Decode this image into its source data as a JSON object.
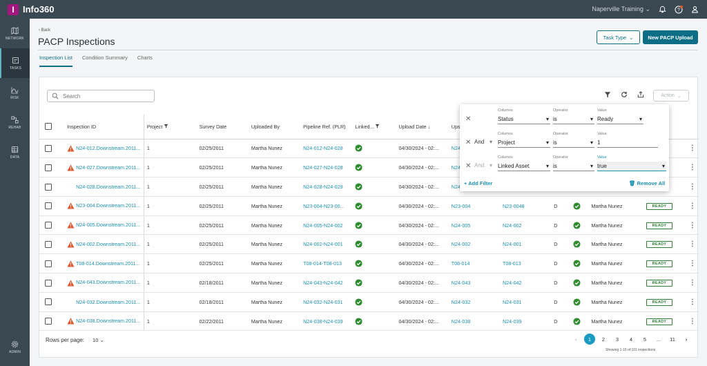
{
  "app": {
    "logo_letter": "I",
    "name": "Info360",
    "workspace": "Naperville Training",
    "accent": "#a3177f",
    "teal": "#0b6e86",
    "link": "#1b8fb0"
  },
  "sidebar": {
    "items": [
      {
        "label": "NETWORK",
        "icon": "map-icon"
      },
      {
        "label": "TASKS",
        "icon": "clipboard-icon"
      },
      {
        "label": "RISK",
        "icon": "risk-chart-icon"
      },
      {
        "label": "REHAB",
        "icon": "rehab-icon"
      },
      {
        "label": "DATA",
        "icon": "database-icon"
      }
    ],
    "admin_label": "ADMIN"
  },
  "header": {
    "back": "Back",
    "title": "PACP Inspections",
    "task_type": "Task Type",
    "new_upload": "New PACP Upload"
  },
  "tabs": [
    {
      "label": "Inspection List"
    },
    {
      "label": "Condition Summary"
    },
    {
      "label": "Charts"
    }
  ],
  "search": {
    "placeholder": "Search"
  },
  "action": {
    "label": "Action"
  },
  "table": {
    "columns": [
      "Inspection ID",
      "Project",
      "Survey Date",
      "Uploaded By",
      "Pipeline Ref. (PLR)",
      "Linked...",
      "Upload Date",
      "Upstr"
    ],
    "rows": [
      {
        "warn": true,
        "id": "N24-012.Downstream.2011...",
        "project": "1",
        "survey": "02/25/2011",
        "by": "Martha Nunez",
        "plr": "N24-012-N24-028",
        "upload": "04/30/2024 - 02:...",
        "up": "N24-0",
        "asset": "",
        "d": "",
        "reviewer": "",
        "status": ""
      },
      {
        "warn": true,
        "id": "N24-027.Downstream.2011...",
        "project": "1",
        "survey": "02/25/2011",
        "by": "Martha Nunez",
        "plr": "N24-027-N24-028",
        "upload": "04/30/2024 - 02:...",
        "up": "N24-0",
        "asset": "",
        "d": "",
        "reviewer": "",
        "status": ""
      },
      {
        "warn": false,
        "id": "N24-028.Downstream.2011...",
        "project": "1",
        "survey": "02/25/2011",
        "by": "Martha Nunez",
        "plr": "N24-028-N24-029",
        "upload": "04/30/2024 - 02:...",
        "up": "N24-0",
        "asset": "",
        "d": "",
        "reviewer": "",
        "status": ""
      },
      {
        "warn": true,
        "id": "N23-004.Downstream.2011...",
        "project": "1",
        "survey": "02/25/2011",
        "by": "Martha Nunez",
        "plr": "N23-004-N23-00...",
        "upload": "04/30/2024 - 02:...",
        "up": "N23-004",
        "asset": "N23-0048",
        "d": "D",
        "reviewer": "Martha Nunez",
        "status": "READY"
      },
      {
        "warn": true,
        "id": "N24-005.Downstream.2011...",
        "project": "1",
        "survey": "02/25/2011",
        "by": "Martha Nunez",
        "plr": "N24-005-N24-002",
        "upload": "04/30/2024 - 02:...",
        "up": "N24-005",
        "asset": "N24-002",
        "d": "D",
        "reviewer": "Martha Nunez",
        "status": "READY"
      },
      {
        "warn": true,
        "id": "N24-002.Downstream.2011...",
        "project": "1",
        "survey": "02/25/2011",
        "by": "Martha Nunez",
        "plr": "N24-002-N24-001",
        "upload": "04/30/2024 - 02:...",
        "up": "N24-002",
        "asset": "N24-001",
        "d": "D",
        "reviewer": "Martha Nunez",
        "status": "READY"
      },
      {
        "warn": true,
        "id": "T08-014.Downstream.2011...",
        "project": "1",
        "survey": "02/25/2011",
        "by": "Martha Nunez",
        "plr": "T08-014-T08-013",
        "upload": "04/30/2024 - 02:...",
        "up": "T08-014",
        "asset": "T08-013",
        "d": "D",
        "reviewer": "Martha Nunez",
        "status": "READY"
      },
      {
        "warn": true,
        "id": "N24-043.Downstream.2011...",
        "project": "1",
        "survey": "02/18/2011",
        "by": "Martha Nunez",
        "plr": "N24-043-N24-042",
        "upload": "04/30/2024 - 02:...",
        "up": "N24-043",
        "asset": "N24-042",
        "d": "D",
        "reviewer": "Martha Nunez",
        "status": "READY"
      },
      {
        "warn": false,
        "id": "N24-032.Downstream.2011...",
        "project": "1",
        "survey": "02/18/2011",
        "by": "Martha Nunez",
        "plr": "N24-032-N24-031",
        "upload": "04/30/2024 - 02:...",
        "up": "N24-032",
        "asset": "N24-031",
        "d": "D",
        "reviewer": "Martha Nunez",
        "status": "READY"
      },
      {
        "warn": true,
        "id": "N24-038.Downstream.2011...",
        "project": "1",
        "survey": "02/22/2011",
        "by": "Martha Nunez",
        "plr": "N24-038-N24-039",
        "upload": "04/30/2024 - 02:...",
        "up": "N24-038",
        "asset": "N24-039",
        "d": "D",
        "reviewer": "Martha Nunez",
        "status": "READY"
      }
    ]
  },
  "footer": {
    "rows_label": "Rows per page:",
    "rows_value": "10",
    "pages": [
      "1",
      "2",
      "3",
      "4",
      "5",
      "...",
      "11"
    ],
    "info": "Showing 1-10 of 101 inspections"
  },
  "filter": {
    "labels": {
      "columns": "Columns",
      "operator": "Operator",
      "value": "Value"
    },
    "rows": [
      {
        "conj": "",
        "column": "Status",
        "operator": "is",
        "value": "Ready"
      },
      {
        "conj": "And",
        "column": "Project",
        "operator": "is",
        "value": "1"
      },
      {
        "conj": "And",
        "column": "Linked Asset",
        "operator": "is",
        "value": "true"
      }
    ],
    "add": "Add Filter",
    "remove": "Remove All"
  }
}
